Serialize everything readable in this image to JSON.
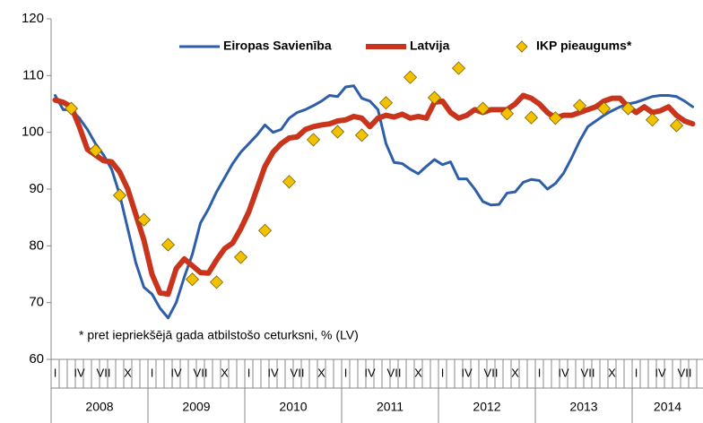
{
  "chart_data": {
    "type": "line",
    "note": "* pret iepriekšējā gada atbilstošo ceturksni, % (LV)",
    "categories": [
      "I",
      null,
      null,
      "IV",
      null,
      null,
      "VII",
      null,
      null,
      "X",
      null,
      null,
      "I",
      null,
      null,
      "IV",
      null,
      null,
      "VII",
      null,
      null,
      "X",
      null,
      null,
      "I",
      null,
      null,
      "IV",
      null,
      null,
      "VII",
      null,
      null,
      "X",
      null,
      null,
      "I",
      null,
      null,
      "IV",
      null,
      null,
      "VII",
      null,
      null,
      "X",
      null,
      null,
      "I",
      null,
      null,
      "IV",
      null,
      null,
      "VII",
      null,
      null,
      "X",
      null,
      null,
      "I",
      null,
      null,
      "IV",
      null,
      null,
      "VII",
      null,
      null,
      "X",
      null,
      null,
      "I",
      null,
      null,
      "IV",
      null,
      null,
      "VII",
      null
    ],
    "years": [
      "2008",
      "2009",
      "2010",
      "2011",
      "2012",
      "2013",
      "2014"
    ],
    "ylim": [
      60,
      120
    ],
    "yticks": [
      60,
      70,
      80,
      90,
      100,
      110,
      120
    ],
    "grid": false,
    "legend": "top",
    "series": [
      {
        "name": "Eiropas Savienība",
        "type": "line",
        "color": "#2e5ea8",
        "values": [
          106.5,
          104,
          104,
          102.5,
          100.5,
          98,
          96,
          93.5,
          89,
          83,
          77,
          72.7,
          71.5,
          69,
          67.3,
          70,
          74.5,
          78.5,
          84,
          86.5,
          89.5,
          92,
          94.5,
          96.5,
          98,
          99.5,
          101.3,
          100,
          100.5,
          102.5,
          103.5,
          104,
          104.7,
          105.5,
          106.5,
          106.3,
          108,
          108.2,
          106,
          105.5,
          104,
          98,
          94.7,
          94.5,
          93.5,
          92.7,
          94,
          95.2,
          94.3,
          94.8,
          91.8,
          91.8,
          90,
          87.8,
          87.2,
          87.3,
          89.3,
          89.5,
          91.2,
          91.7,
          91.5,
          90,
          91,
          92.8,
          95.5,
          98.5,
          101,
          102,
          103,
          103.8,
          104.5,
          105,
          105.3,
          105.8,
          106.3,
          106.5,
          106.5,
          106.3,
          105.5,
          104.5
        ]
      },
      {
        "name": "Latvija",
        "type": "line",
        "color": "#c8341c",
        "values": [
          105.7,
          105.3,
          104.5,
          101,
          97,
          96,
          95,
          94.8,
          93,
          90,
          85.5,
          81,
          75,
          71.7,
          71.5,
          76,
          77.7,
          76.5,
          75.3,
          75.2,
          77.5,
          79.5,
          80.5,
          83,
          86,
          90,
          94,
          96.5,
          98,
          99,
          99.2,
          100.5,
          101,
          101.3,
          101.5,
          102,
          102.2,
          102.8,
          102.5,
          101,
          102.5,
          103,
          102.7,
          103.2,
          102.5,
          102.8,
          102.5,
          105.3,
          105.5,
          103.5,
          102.5,
          103,
          104,
          103.5,
          104,
          104,
          104,
          105,
          106.5,
          106,
          105,
          103.5,
          102.5,
          103,
          103,
          103.5,
          104,
          104.5,
          105.5,
          106,
          106,
          104.5,
          103.5,
          104.5,
          103.5,
          103.8,
          104.5,
          103,
          102,
          101.5
        ]
      },
      {
        "name": "IKP pieaugums*",
        "type": "scatter",
        "color": "#f2c200",
        "values": [
          null,
          null,
          104.2,
          null,
          null,
          96.8,
          null,
          null,
          88.9,
          null,
          null,
          84.6,
          null,
          null,
          80.2,
          null,
          null,
          74.1,
          null,
          null,
          73.6,
          null,
          null,
          78.0,
          null,
          null,
          82.7,
          null,
          null,
          91.3,
          null,
          null,
          98.7,
          null,
          null,
          100.1,
          null,
          null,
          99.5,
          null,
          null,
          105.2,
          null,
          null,
          109.7,
          null,
          null,
          106.1,
          null,
          null,
          111.3,
          null,
          null,
          104.2,
          null,
          null,
          103.3,
          null,
          null,
          102.6,
          null,
          null,
          102.5,
          null,
          null,
          104.7,
          null,
          null,
          104.2,
          null,
          null,
          104.2,
          null,
          null,
          102.2,
          null,
          null,
          101.2,
          null,
          null
        ]
      }
    ]
  }
}
